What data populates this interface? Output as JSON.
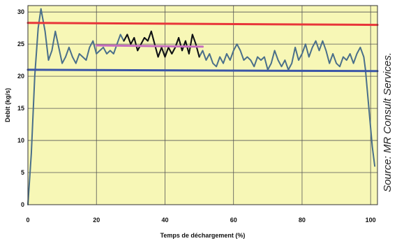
{
  "chart_data": {
    "type": "line",
    "xlabel": "Temps de déchargement (%)",
    "ylabel": "Debit (kg/s)",
    "xlim": [
      0,
      102
    ],
    "ylim": [
      0,
      31
    ],
    "x_ticks": [
      "0",
      "20",
      "40",
      "60",
      "80",
      "100"
    ],
    "y_ticks": [
      "0",
      "5",
      "10",
      "15",
      "20",
      "25",
      "30"
    ],
    "grid": true,
    "background_color": "#f7f7b6",
    "series": [
      {
        "color": "#4a6f8a",
        "points": [
          [
            0,
            0
          ],
          [
            1,
            8
          ],
          [
            2,
            20
          ],
          [
            3,
            27.5
          ],
          [
            3.8,
            30.5
          ],
          [
            5,
            27
          ],
          [
            6,
            22.5
          ],
          [
            7,
            24
          ],
          [
            8,
            27
          ],
          [
            9,
            24.5
          ],
          [
            10,
            22
          ],
          [
            11,
            23
          ],
          [
            12,
            24.5
          ],
          [
            13,
            23
          ],
          [
            14,
            22
          ],
          [
            15,
            23.5
          ],
          [
            16,
            23
          ],
          [
            17,
            22.5
          ],
          [
            18,
            24.5
          ],
          [
            19,
            25.5
          ],
          [
            20,
            23.5
          ],
          [
            21,
            24
          ],
          [
            22,
            24.5
          ],
          [
            23,
            23.5
          ],
          [
            24,
            24
          ],
          [
            25,
            23.5
          ],
          [
            26,
            25
          ],
          [
            27,
            26.5
          ],
          [
            28,
            25.5
          ],
          [
            29,
            26.5
          ],
          [
            30,
            25
          ],
          [
            31,
            26
          ],
          [
            32,
            24
          ],
          [
            33,
            25
          ],
          [
            34,
            26
          ],
          [
            35,
            25.5
          ],
          [
            36,
            27
          ],
          [
            37,
            25
          ],
          [
            38,
            23
          ],
          [
            39,
            24.5
          ],
          [
            40,
            23
          ],
          [
            41,
            24.5
          ],
          [
            42,
            23.5
          ],
          [
            43,
            24.5
          ],
          [
            44,
            26
          ],
          [
            45,
            24
          ],
          [
            46,
            25.5
          ],
          [
            47,
            23.5
          ],
          [
            48,
            26.5
          ],
          [
            49,
            25
          ],
          [
            50,
            23
          ],
          [
            51,
            24
          ],
          [
            52,
            22.5
          ],
          [
            53,
            23.5
          ],
          [
            54,
            22
          ],
          [
            55,
            21.5
          ],
          [
            56,
            23
          ],
          [
            57,
            22
          ],
          [
            58,
            23.5
          ],
          [
            59,
            22.5
          ],
          [
            60,
            24
          ],
          [
            61,
            25
          ],
          [
            62,
            24
          ],
          [
            63,
            22.5
          ],
          [
            64,
            23
          ],
          [
            65,
            22.5
          ],
          [
            66,
            21.5
          ],
          [
            67,
            23
          ],
          [
            68,
            22.5
          ],
          [
            69,
            23
          ],
          [
            70,
            21
          ],
          [
            71,
            22
          ],
          [
            72,
            24
          ],
          [
            73,
            22.5
          ],
          [
            74,
            21.5
          ],
          [
            75,
            22.5
          ],
          [
            76,
            21
          ],
          [
            77,
            22
          ],
          [
            78,
            24.5
          ],
          [
            79,
            22.5
          ],
          [
            80,
            23.5
          ],
          [
            81,
            25
          ],
          [
            82,
            23
          ],
          [
            83,
            24.5
          ],
          [
            84,
            25.5
          ],
          [
            85,
            24
          ],
          [
            86,
            25.5
          ],
          [
            87,
            24
          ],
          [
            88,
            22
          ],
          [
            89,
            23.5
          ],
          [
            90,
            22
          ],
          [
            91,
            21.5
          ],
          [
            92,
            23
          ],
          [
            93,
            22.5
          ],
          [
            94,
            23.5
          ],
          [
            95,
            22
          ],
          [
            96,
            23.5
          ],
          [
            97,
            24.5
          ],
          [
            98,
            23
          ],
          [
            98.5,
            21
          ],
          [
            99.5,
            15
          ],
          [
            100.5,
            9
          ],
          [
            101.2,
            6
          ]
        ]
      },
      {
        "color": "#111111",
        "points": [
          [
            28,
            25.5
          ],
          [
            29,
            26.5
          ],
          [
            30,
            25
          ],
          [
            31,
            26
          ],
          [
            32,
            24
          ],
          [
            33,
            25
          ],
          [
            34,
            26
          ],
          [
            35,
            25.5
          ],
          [
            36,
            27
          ],
          [
            37,
            25
          ],
          [
            38,
            23
          ],
          [
            39,
            24.5
          ],
          [
            40,
            23
          ],
          [
            41,
            24.5
          ],
          [
            42,
            23.5
          ],
          [
            43,
            24.5
          ],
          [
            44,
            26
          ],
          [
            45,
            24
          ],
          [
            46,
            25.5
          ],
          [
            47,
            23.5
          ],
          [
            48,
            26.5
          ],
          [
            49,
            25
          ],
          [
            50,
            23
          ]
        ]
      },
      {
        "color": "#e8353a",
        "points": [
          [
            0,
            28.3
          ],
          [
            102,
            28
          ]
        ]
      },
      {
        "color": "#c86fbd",
        "points": [
          [
            20,
            24.8
          ],
          [
            51,
            24.6
          ]
        ]
      },
      {
        "color": "#3b56a8",
        "points": [
          [
            0,
            21
          ],
          [
            102,
            20.8
          ]
        ]
      }
    ]
  },
  "source_note": "Source: MR Consult Services."
}
